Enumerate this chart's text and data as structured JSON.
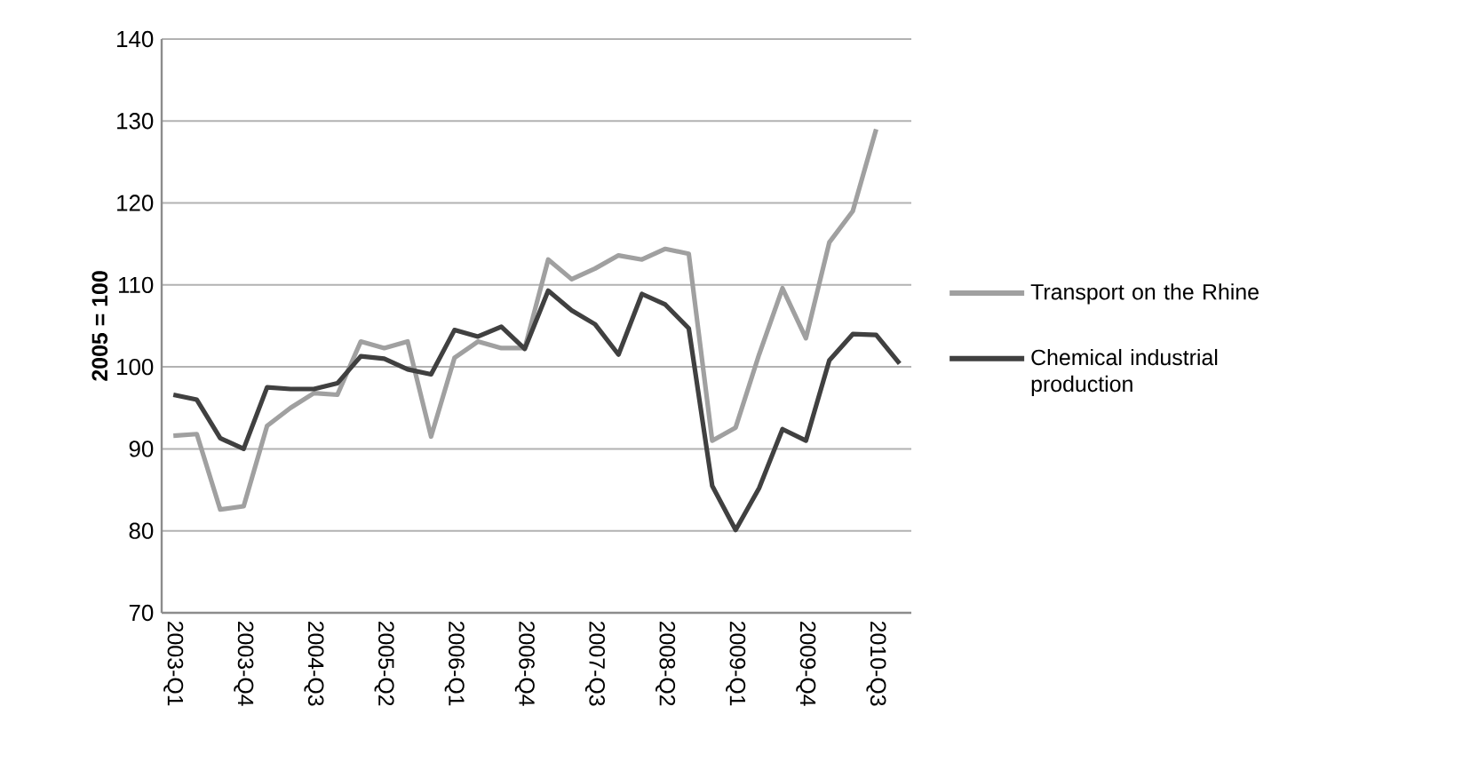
{
  "chart_data": {
    "type": "line",
    "ylabel": "2005 = 100",
    "categories": [
      "2003-Q1",
      null,
      null,
      "2003-Q4",
      null,
      null,
      "2004-Q3",
      null,
      null,
      "2005-Q2",
      null,
      null,
      "2006-Q1",
      null,
      null,
      "2006-Q4",
      null,
      null,
      "2007-Q3",
      null,
      null,
      "2008-Q2",
      null,
      null,
      "2009-Q1",
      null,
      null,
      "2009-Q4",
      null,
      null,
      "2010-Q3",
      null
    ],
    "series": [
      {
        "name": "Transport on the Rhine",
        "color": "#a0a0a0",
        "values": [
          91.6,
          91.8,
          82.6,
          83.0,
          92.8,
          95.0,
          96.8,
          96.6,
          103.1,
          102.3,
          103.1,
          91.5,
          101.1,
          103.1,
          102.3,
          102.3,
          113.1,
          110.7,
          112.0,
          113.6,
          113.1,
          114.4,
          113.8,
          91.0,
          92.6,
          101.5,
          109.6,
          103.5,
          115.2,
          119.0,
          129.0,
          null
        ]
      },
      {
        "name": "Chemical industrial production",
        "color": "#404040",
        "values": [
          96.6,
          96.0,
          91.3,
          90.0,
          97.5,
          97.3,
          97.3,
          98.0,
          101.3,
          101.0,
          99.7,
          99.1,
          104.5,
          103.7,
          104.9,
          102.2,
          109.3,
          106.9,
          105.2,
          101.5,
          108.9,
          107.6,
          104.7,
          85.5,
          80.1,
          85.2,
          92.4,
          91.0,
          100.8,
          104.0,
          103.9,
          100.4
        ]
      }
    ],
    "ylim": [
      70,
      140
    ],
    "yticks": [
      70,
      80,
      90,
      100,
      110,
      120,
      130,
      140
    ],
    "grid": "y",
    "legend": "right",
    "line_style": "solid",
    "marker": "none"
  }
}
